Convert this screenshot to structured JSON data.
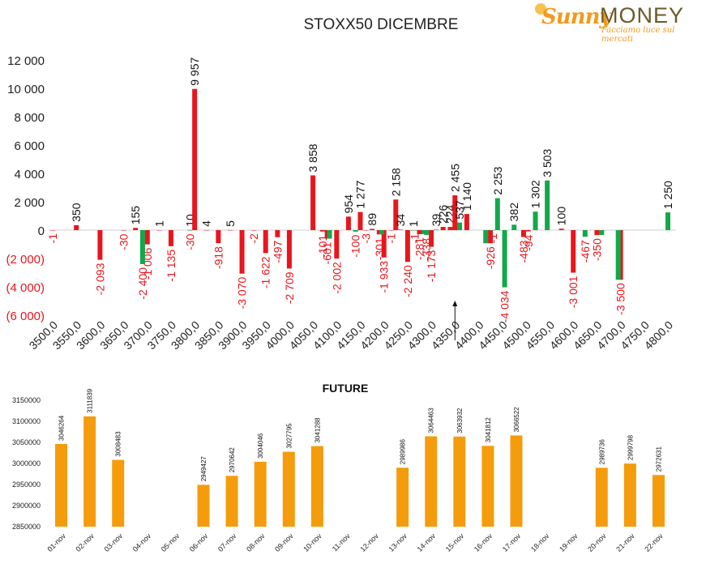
{
  "logo": {
    "brand_a": "Sunny",
    "brand_b": "MONEY",
    "tagline": "Facciamo luce sul mercati"
  },
  "colors": {
    "positive": "#e8161c",
    "negative": "#13a84b",
    "future_bar": "#f59c0c",
    "axis_text": "#333333"
  },
  "chart_data": [
    {
      "type": "bar",
      "title": "STOXX50 DICEMBRE",
      "ylim": [
        -6000,
        12000
      ],
      "y_ticks": [
        {
          "v": 12000,
          "label": "12 000"
        },
        {
          "v": 10000,
          "label": "10 000"
        },
        {
          "v": 8000,
          "label": "8 000"
        },
        {
          "v": 6000,
          "label": "6 000"
        },
        {
          "v": 4000,
          "label": "4 000"
        },
        {
          "v": 2000,
          "label": "2 000"
        },
        {
          "v": 0,
          "label": "0"
        },
        {
          "v": -2000,
          "label": "(2 000)"
        },
        {
          "v": -4000,
          "label": "(4 000)"
        },
        {
          "v": -6000,
          "label": "(6 000)"
        }
      ],
      "x_tick_labels": [
        "3500,0",
        "3550,0",
        "3600,0",
        "3650,0",
        "3700,0",
        "3750,0",
        "3800,0",
        "3850,0",
        "3900,0",
        "3950,0",
        "4000,0",
        "4050,0",
        "4100,0",
        "4150,0",
        "4200,0",
        "4250,0",
        "4300,0",
        "4350,0",
        "4400,0",
        "4450,0",
        "4500,0",
        "4550,0",
        "4600,0",
        "4650,0",
        "4700,0",
        "4750,0",
        "4800,0"
      ],
      "x_range": [
        3500,
        4800
      ],
      "series": [
        {
          "color": "red",
          "points": [
            {
              "x": 3500,
              "v": -1,
              "label": "-1"
            },
            {
              "x": 3550,
              "v": 350,
              "label": "350"
            },
            {
              "x": 3600,
              "v": -2093,
              "label": "-2 093"
            },
            {
              "x": 3650,
              "v": -30,
              "label": "-30"
            },
            {
              "x": 3675,
              "v": 155,
              "label": "155"
            },
            {
              "x": 3700,
              "v": -1006,
              "label": "-1 006"
            },
            {
              "x": 3725,
              "v": 1,
              "label": "1"
            },
            {
              "x": 3750,
              "v": -1135,
              "label": "-1 135"
            },
            {
              "x": 3790,
              "v": 10,
              "label": "10"
            },
            {
              "x": 3800,
              "v": 9957,
              "label": "9 957"
            },
            {
              "x": 3825,
              "v": 4,
              "label": "4"
            },
            {
              "x": 3850,
              "v": -918,
              "label": "-918"
            },
            {
              "x": 3875,
              "v": 5,
              "label": "5"
            },
            {
              "x": 3900,
              "v": -3070,
              "label": "-3 070"
            },
            {
              "x": 3925,
              "v": -2,
              "label": "-2"
            },
            {
              "x": 3950,
              "v": -1622,
              "label": "-1 622"
            },
            {
              "x": 3975,
              "v": -497,
              "label": "-497"
            },
            {
              "x": 4000,
              "v": -2709,
              "label": "-2 709"
            },
            {
              "x": 4050,
              "v": 3858,
              "label": "3 858"
            },
            {
              "x": 4070,
              "v": -101,
              "label": "-101"
            },
            {
              "x": 4080,
              "v": -601,
              "label": "-601"
            },
            {
              "x": 4100,
              "v": -2002,
              "label": "-2 002"
            },
            {
              "x": 4125,
              "v": 954,
              "label": "954"
            },
            {
              "x": 4140,
              "v": -100,
              "label": "-100"
            },
            {
              "x": 4150,
              "v": 1277,
              "label": "1 277"
            },
            {
              "x": 4162,
              "v": -3,
              "label": "-3"
            },
            {
              "x": 4175,
              "v": 89,
              "label": "89"
            },
            {
              "x": 4190,
              "v": -301,
              "label": "-301"
            },
            {
              "x": 4200,
              "v": -1933,
              "label": "-1 933"
            },
            {
              "x": 4215,
              "v": -1,
              "label": "-1"
            },
            {
              "x": 4225,
              "v": 2158,
              "label": "2 158"
            },
            {
              "x": 4235,
              "v": 34,
              "label": "34"
            },
            {
              "x": 4250,
              "v": -2240,
              "label": "-2 240"
            },
            {
              "x": 4262,
              "v": 1,
              "label": "1"
            },
            {
              "x": 4275,
              "v": -281,
              "label": "-281"
            },
            {
              "x": 4300,
              "v": -1173,
              "label": "-1 173"
            },
            {
              "x": 4325,
              "v": 226,
              "label": "226"
            },
            {
              "x": 4340,
              "v": 224,
              "label": "224"
            },
            {
              "x": 4350,
              "v": 2455,
              "label": "2 455"
            },
            {
              "x": 4375,
              "v": 1140,
              "label": "1 140"
            },
            {
              "x": 4425,
              "v": -926,
              "label": "-926"
            },
            {
              "x": 4495,
              "v": -483,
              "label": "-483"
            },
            {
              "x": 4505,
              "v": -94,
              "label": "-94"
            },
            {
              "x": 4575,
              "v": 100,
              "label": "100"
            },
            {
              "x": 4600,
              "v": -3001,
              "label": "-3 001"
            },
            {
              "x": 4650,
              "v": -350,
              "label": "-350"
            },
            {
              "x": 4700,
              "v": -3500,
              "label": "-3 500"
            }
          ]
        },
        {
          "color": "green",
          "points": [
            {
              "x": 3690,
              "v": -2400,
              "label": "-2 400"
            },
            {
              "x": 3790,
              "v": -30,
              "label": "-30"
            },
            {
              "x": 4085,
              "v": -601
            },
            {
              "x": 4140,
              "v": -100
            },
            {
              "x": 4195,
              "v": -301
            },
            {
              "x": 4265,
              "v": -1,
              "label": "-1"
            },
            {
              "x": 4285,
              "v": -281
            },
            {
              "x": 4310,
              "v": 39,
              "label": "39"
            },
            {
              "x": 4290,
              "v": -338,
              "label": "-338"
            },
            {
              "x": 4360,
              "v": 537,
              "label": "537"
            },
            {
              "x": 4415,
              "v": -926
            },
            {
              "x": 4430,
              "v": -1,
              "label": "-1"
            },
            {
              "x": 4440,
              "v": 2253,
              "label": "2 253"
            },
            {
              "x": 4455,
              "v": -4034,
              "label": "-4 034"
            },
            {
              "x": 4475,
              "v": 382,
              "label": "382"
            },
            {
              "x": 4520,
              "v": 1302,
              "label": "1 302"
            },
            {
              "x": 4545,
              "v": 3503,
              "label": "3 503"
            },
            {
              "x": 4625,
              "v": -467,
              "label": "-467"
            },
            {
              "x": 4660,
              "v": -350
            },
            {
              "x": 4695,
              "v": -3500
            },
            {
              "x": 4800,
              "v": 1250,
              "label": "1 250"
            }
          ]
        }
      ],
      "arrow_at_x": 4350
    },
    {
      "type": "bar",
      "title": "FUTURE",
      "ylim": [
        2850000,
        3150000
      ],
      "y_ticks": [
        {
          "v": 3150000,
          "label": "3150000"
        },
        {
          "v": 3100000,
          "label": "3100000"
        },
        {
          "v": 3050000,
          "label": "3050000"
        },
        {
          "v": 3000000,
          "label": "3000000"
        },
        {
          "v": 2950000,
          "label": "2950000"
        },
        {
          "v": 2900000,
          "label": "2900000"
        },
        {
          "v": 2850000,
          "label": "2850000"
        }
      ],
      "categories": [
        "01-nov",
        "02-nov",
        "03-nov",
        "04-nov",
        "05-nov",
        "06-nov",
        "07-nov",
        "08-nov",
        "09-nov",
        "10-nov",
        "11-nov",
        "12-nov",
        "13-nov",
        "14-nov",
        "15-nov",
        "16-nov",
        "17-nov",
        "18-nov",
        "19-nov",
        "20-nov",
        "21-nov",
        "22-nov"
      ],
      "values": [
        3046264,
        3111839,
        3008483,
        null,
        null,
        2949427,
        2970642,
        3004046,
        3027795,
        3041288,
        null,
        null,
        2989986,
        3064463,
        3063932,
        3041812,
        3066522,
        null,
        null,
        2989736,
        2999798,
        2972631
      ],
      "value_labels": [
        "3046264",
        "3111839",
        "3008483",
        "",
        "",
        "2949427",
        "2970642",
        "3004046",
        "3027795",
        "3041288",
        "",
        "",
        "2989986",
        "3064463",
        "3063932",
        "3041812",
        "3066522",
        "",
        "",
        "2989736",
        "2999798",
        "2972631"
      ]
    }
  ]
}
